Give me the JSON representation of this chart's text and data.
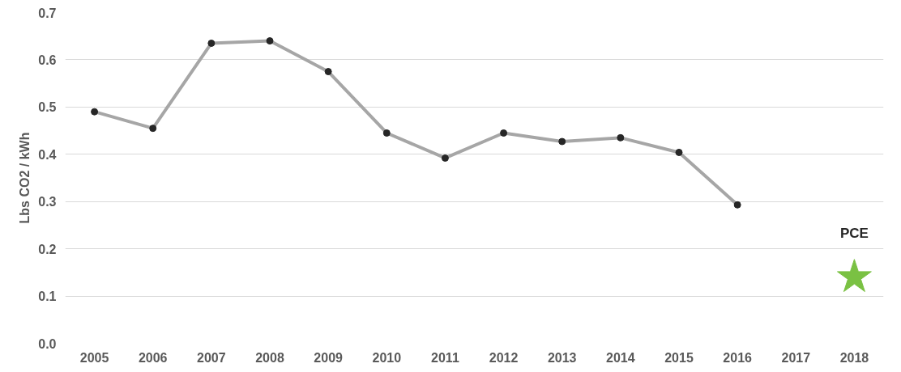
{
  "chart_data": {
    "type": "line",
    "ylabel": "Lbs CO2 / kWh",
    "categories": [
      "2005",
      "2006",
      "2007",
      "2008",
      "2009",
      "2010",
      "2011",
      "2012",
      "2013",
      "2014",
      "2015",
      "2016",
      "2017",
      "2018"
    ],
    "series": [
      {
        "color": "#a6a6a6",
        "marker": "circle",
        "values": [
          0.49,
          0.455,
          0.635,
          0.64,
          0.575,
          0.445,
          0.392,
          0.445,
          0.427,
          0.435,
          0.404,
          0.293,
          null,
          null
        ]
      },
      {
        "type": "scatter",
        "color": "#7ac143",
        "marker": "star",
        "values": [
          null,
          null,
          null,
          null,
          null,
          null,
          null,
          null,
          null,
          null,
          null,
          null,
          null,
          0.14
        ]
      }
    ],
    "annotations": [
      {
        "text": "PCE",
        "x": "2018",
        "y": 0.14
      }
    ],
    "ylim": [
      0,
      0.7
    ],
    "yticks": [
      {
        "value": 0,
        "label": "0.0"
      },
      {
        "value": 0.1,
        "label": "0.1"
      },
      {
        "value": 0.2,
        "label": "0.2"
      },
      {
        "value": 0.3,
        "label": "0.3"
      },
      {
        "value": 0.4,
        "label": "0.4"
      },
      {
        "value": 0.5,
        "label": "0.5"
      },
      {
        "value": 0.6,
        "label": "0.6"
      },
      {
        "value": 0.7,
        "label": "0.7"
      }
    ],
    "grid": "y"
  }
}
